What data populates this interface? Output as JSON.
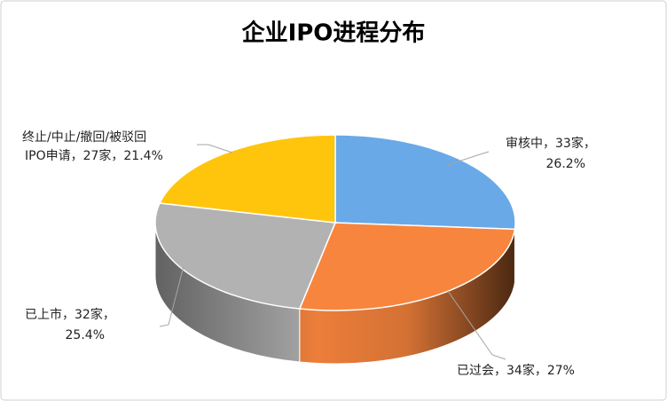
{
  "chart_data": {
    "type": "pie3d",
    "title": "企业IPO进程分布",
    "values": [
      33,
      34,
      32,
      27
    ],
    "value_labels": [
      [
        "审核中，33家，",
        "26.2%"
      ],
      [
        "已过会，34家，27%"
      ],
      [
        "已上市，32家，",
        "25.4%"
      ],
      [
        "终止/中止/撤回/被驳回",
        "IPO申请，27家，21.4%"
      ]
    ],
    "colors": [
      "#69a9e7",
      "#f8853d",
      "#b2b2b2",
      "#ffc50d"
    ]
  }
}
